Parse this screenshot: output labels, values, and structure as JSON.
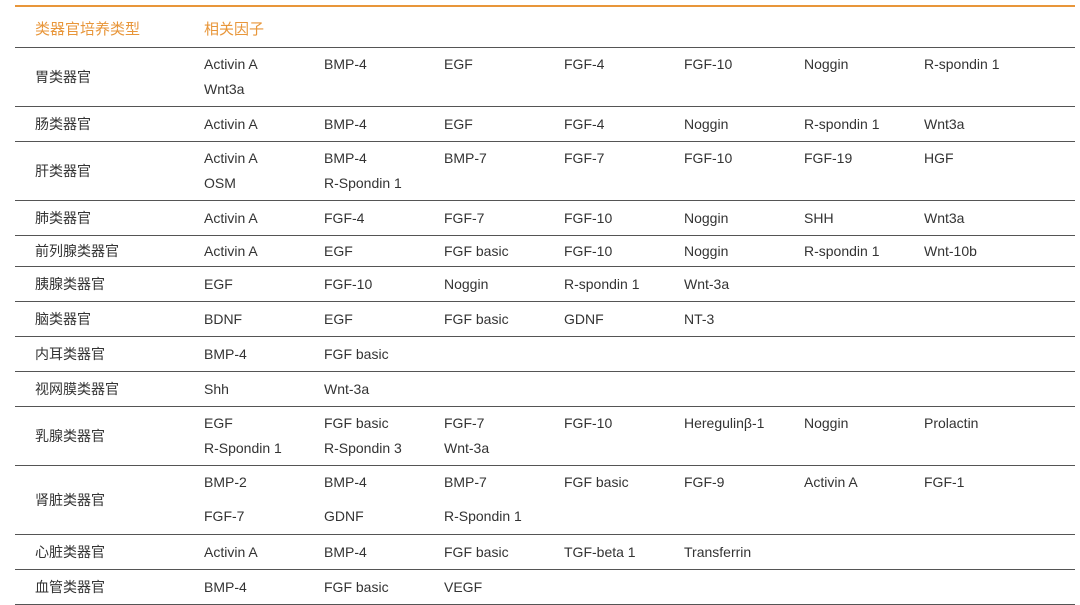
{
  "headers": {
    "type": "类器官培养类型",
    "factors": "相关因子"
  },
  "colors": {
    "accent": "#e8963a",
    "rule": "#555555",
    "text": "#333333"
  },
  "rows": [
    {
      "type": "胃类器官",
      "lines": [
        [
          "Activin A",
          "BMP-4",
          "EGF",
          "FGF-4",
          "FGF-10",
          "Noggin",
          "R-spondin 1"
        ],
        [
          "Wnt3a"
        ]
      ]
    },
    {
      "type": "肠类器官",
      "lines": [
        [
          "Activin A",
          "BMP-4",
          "EGF",
          "FGF-4",
          "Noggin",
          "R-spondin 1",
          "Wnt3a"
        ]
      ]
    },
    {
      "type": "肝类器官",
      "lines": [
        [
          "Activin A",
          "BMP-4",
          "BMP-7",
          "FGF-7",
          "FGF-10",
          "FGF-19",
          "HGF"
        ],
        [
          "OSM",
          "R-Spondin 1"
        ]
      ]
    },
    {
      "type": "肺类器官",
      "lines": [
        [
          "Activin A",
          "FGF-4",
          "FGF-7",
          "FGF-10",
          "Noggin",
          "SHH",
          "Wnt3a"
        ]
      ]
    },
    {
      "type": "前列腺类器官",
      "lines": [
        [
          "Activin A",
          "EGF",
          "FGF basic",
          "FGF-10",
          "Noggin",
          "R-spondin 1",
          "Wnt-10b"
        ]
      ]
    },
    {
      "type": "胰腺类器官",
      "lines": [
        [
          "EGF",
          "FGF-10",
          "Noggin",
          "R-spondin 1",
          "Wnt-3a"
        ]
      ]
    },
    {
      "type": "脑类器官",
      "lines": [
        [
          "BDNF",
          "EGF",
          "FGF basic",
          "GDNF",
          "NT-3"
        ]
      ]
    },
    {
      "type": "内耳类器官",
      "lines": [
        [
          "BMP-4",
          "FGF basic"
        ]
      ]
    },
    {
      "type": "视网膜类器官",
      "lines": [
        [
          "Shh",
          "Wnt-3a"
        ]
      ]
    },
    {
      "type": "乳腺类器官",
      "lines": [
        [
          "EGF",
          "FGF basic",
          "FGF-7",
          "FGF-10",
          "Heregulinβ-1",
          "Noggin",
          "Prolactin"
        ],
        [
          "R-Spondin 1",
          "R-Spondin 3",
          "Wnt-3a"
        ]
      ]
    },
    {
      "type": "肾脏类器官",
      "lines": [
        [
          "BMP-2",
          "BMP-4",
          "BMP-7",
          "FGF basic",
          "FGF-9",
          "Activin A",
          "FGF-1"
        ],
        [
          "FGF-7",
          "GDNF",
          "R-Spondin 1"
        ]
      ]
    },
    {
      "type": "心脏类器官",
      "lines": [
        [
          "Activin A",
          "BMP-4",
          "FGF basic",
          "TGF-beta 1",
          "Transferrin"
        ]
      ]
    },
    {
      "type": "血管类器官",
      "lines": [
        [
          "BMP-4",
          "FGF basic",
          "VEGF"
        ]
      ]
    }
  ]
}
